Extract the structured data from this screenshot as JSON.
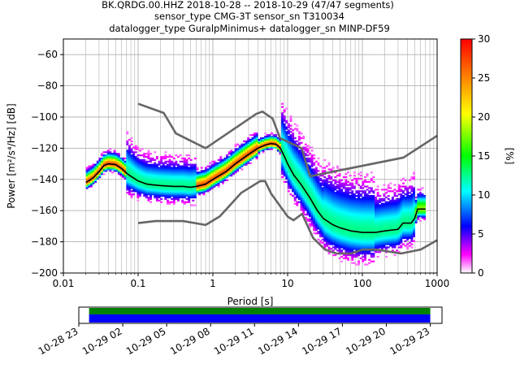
{
  "title_lines": [
    "BK.QRDG.00.HHZ   2018-10-28 -- 2018-10-29  (47/47 segments)",
    "sensor_type CMG-3T sensor_sn T310034",
    "datalogger_type GuralpMinimus+ datalogger_sn MINP-DF59"
  ],
  "chart_data": {
    "type": "heatmap",
    "xlabel": "Period [s]",
    "ylabel": "Power [m²/s⁴/Hz] [dB]",
    "xscale": "log",
    "xlim": [
      0.01,
      1000
    ],
    "ylim": [
      -200,
      -50
    ],
    "x_ticks": [
      {
        "value": 0.01,
        "label": "0.01"
      },
      {
        "value": 0.1,
        "label": "0.1"
      },
      {
        "value": 1,
        "label": "1"
      },
      {
        "value": 10,
        "label": "10"
      },
      {
        "value": 100,
        "label": "100"
      },
      {
        "value": 1000,
        "label": "1000"
      }
    ],
    "y_ticks": [
      {
        "value": -60,
        "label": "−60"
      },
      {
        "value": -80,
        "label": "−80"
      },
      {
        "value": -100,
        "label": "−100"
      },
      {
        "value": -120,
        "label": "−120"
      },
      {
        "value": -140,
        "label": "−140"
      },
      {
        "value": -160,
        "label": "−160"
      },
      {
        "value": -180,
        "label": "−180"
      },
      {
        "value": -200,
        "label": "−200"
      }
    ],
    "grid": true,
    "colorbar": {
      "label": "[%]",
      "range": [
        0,
        30
      ],
      "ticks": [
        "0",
        "5",
        "10",
        "15",
        "20",
        "25",
        "30"
      ]
    },
    "noise_model_high": {
      "x": [
        0.1,
        0.22,
        0.32,
        0.8,
        3.8,
        4.6,
        6.3,
        7.9,
        15.4,
        20,
        354.8,
        1000
      ],
      "y": [
        -91.5,
        -97.4,
        -110.5,
        -120,
        -98,
        -96.5,
        -101,
        -113.5,
        -120,
        -138,
        -126,
        -112
      ]
    },
    "noise_model_low": {
      "x": [
        0.1,
        0.17,
        0.4,
        0.8,
        1.24,
        2.4,
        4.3,
        5,
        6,
        10,
        12,
        15.6,
        21.9,
        31.6,
        45,
        70,
        101,
        154,
        328,
        600,
        1000
      ],
      "y": [
        -168,
        -166.7,
        -166.7,
        -169.2,
        -163.7,
        -148.6,
        -141.1,
        -141.1,
        -149,
        -163.8,
        -166.2,
        -162.1,
        -177.5,
        -185,
        -187.5,
        -187.5,
        -185,
        -185,
        -187.5,
        -185,
        -179
      ]
    },
    "mean_curve": {
      "x": [
        0.02,
        0.025,
        0.03,
        0.035,
        0.04,
        0.05,
        0.06,
        0.07,
        0.08,
        0.1,
        0.13,
        0.16,
        0.2,
        0.3,
        0.4,
        0.5,
        0.6,
        0.8,
        1,
        1.5,
        2,
        3,
        4,
        5,
        6,
        7,
        8,
        9,
        10,
        12,
        15,
        20,
        25,
        30,
        40,
        50,
        70,
        100,
        150,
        200,
        300,
        350,
        450,
        500,
        550,
        700
      ],
      "y": [
        -142,
        -139,
        -135,
        -131,
        -130,
        -130.5,
        -133,
        -136,
        -138,
        -141,
        -143,
        -143.5,
        -144,
        -144.5,
        -144.5,
        -145,
        -144.5,
        -143,
        -140,
        -135,
        -130,
        -124,
        -120,
        -118,
        -117,
        -117.5,
        -120,
        -125,
        -130,
        -137,
        -143,
        -152,
        -160,
        -165,
        -169,
        -171,
        -173,
        -174,
        -174,
        -173,
        -172,
        -168,
        -168,
        -165,
        -159,
        -159
      ]
    },
    "timeline": {
      "tick_labels": [
        "10-28 23",
        "10-29 02",
        "10-29 05",
        "10-29 08",
        "10-29 11",
        "10-29 14",
        "10-29 17",
        "10-29 20",
        "10-29 23"
      ],
      "start_hour": 23.0,
      "end_hour": 47.8,
      "data_start_hour": 23.7,
      "data_end_hour": 47.0,
      "colors": {
        "top": "#008000",
        "bottom": "#0000ff"
      }
    }
  }
}
